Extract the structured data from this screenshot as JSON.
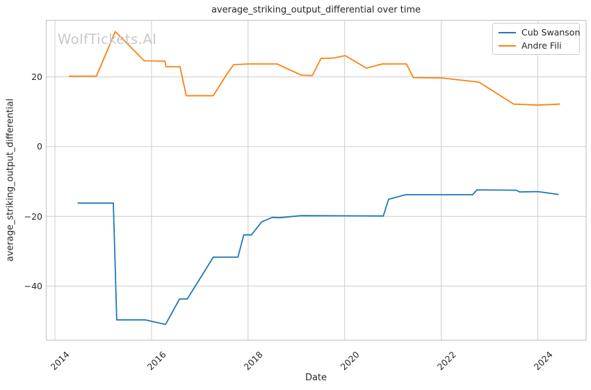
{
  "figure": {
    "title": "average_striking_output_differential over time",
    "xlabel": "Date",
    "ylabel": "average_striking_output_differential",
    "watermark": "WolfTickets.AI"
  },
  "legend": {
    "entries": [
      {
        "label": "Cub Swanson",
        "color": "#1f77b4"
      },
      {
        "label": "Andre Fili",
        "color": "#ff7f0e"
      }
    ]
  },
  "colors": {
    "grid": "#cccccc",
    "spine": "#c6c6c6",
    "text": "#262626",
    "watermark": "#c8c8c8",
    "background": "#ffffff"
  },
  "chart_data": {
    "type": "line",
    "title": "average_striking_output_differential over time",
    "xlabel": "Date",
    "ylabel": "average_striking_output_differential",
    "xlim": [
      2013.82,
      2025.0
    ],
    "ylim": [
      -55.5,
      36.2
    ],
    "x_ticks": [
      2014,
      2016,
      2018,
      2020,
      2022,
      2024
    ],
    "y_ticks": [
      20,
      0,
      -20,
      -40
    ],
    "grid": true,
    "legend_position": "upper right",
    "series": [
      {
        "name": "Cub Swanson",
        "color": "#1f77b4",
        "points": [
          [
            2014.48,
            -16.2
          ],
          [
            2015.21,
            -16.2
          ],
          [
            2015.28,
            -49.7
          ],
          [
            2015.88,
            -49.7
          ],
          [
            2016.29,
            -51.0
          ],
          [
            2016.58,
            -43.7
          ],
          [
            2016.74,
            -43.7
          ],
          [
            2017.28,
            -31.7
          ],
          [
            2017.79,
            -31.7
          ],
          [
            2017.91,
            -25.3
          ],
          [
            2018.07,
            -25.3
          ],
          [
            2018.28,
            -21.6
          ],
          [
            2018.5,
            -20.3
          ],
          [
            2018.65,
            -20.4
          ],
          [
            2019.1,
            -19.8
          ],
          [
            2020.8,
            -19.9
          ],
          [
            2020.91,
            -15.1
          ],
          [
            2021.26,
            -13.8
          ],
          [
            2022.65,
            -13.8
          ],
          [
            2022.74,
            -12.4
          ],
          [
            2023.55,
            -12.5
          ],
          [
            2023.62,
            -13.0
          ],
          [
            2024.0,
            -12.9
          ],
          [
            2024.42,
            -13.7
          ]
        ]
      },
      {
        "name": "Andre Fili",
        "color": "#ff7f0e",
        "points": [
          [
            2014.3,
            20.2
          ],
          [
            2014.86,
            20.2
          ],
          [
            2015.25,
            33.0
          ],
          [
            2015.85,
            24.6
          ],
          [
            2016.28,
            24.5
          ],
          [
            2016.3,
            22.9
          ],
          [
            2016.59,
            22.9
          ],
          [
            2016.72,
            14.6
          ],
          [
            2017.28,
            14.6
          ],
          [
            2017.55,
            20.6
          ],
          [
            2017.7,
            23.5
          ],
          [
            2018.0,
            23.7
          ],
          [
            2018.6,
            23.7
          ],
          [
            2019.1,
            20.5
          ],
          [
            2019.33,
            20.4
          ],
          [
            2019.51,
            25.3
          ],
          [
            2019.77,
            25.4
          ],
          [
            2020.01,
            26.1
          ],
          [
            2020.45,
            22.5
          ],
          [
            2020.78,
            23.7
          ],
          [
            2021.28,
            23.7
          ],
          [
            2021.42,
            19.8
          ],
          [
            2022.0,
            19.7
          ],
          [
            2022.78,
            18.5
          ],
          [
            2023.5,
            12.2
          ],
          [
            2024.0,
            11.9
          ],
          [
            2024.45,
            12.2
          ]
        ]
      }
    ]
  }
}
